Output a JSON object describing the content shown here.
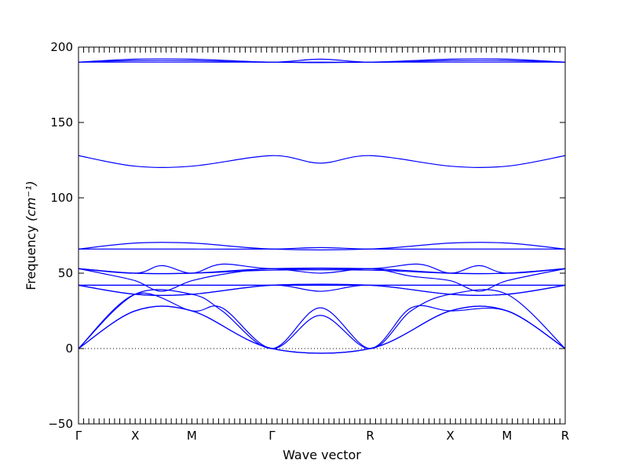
{
  "chart_data": {
    "type": "line",
    "xlabel": "Wave vector",
    "ylabel": "Frequency",
    "ylabel_unit": "(cm⁻¹)",
    "ylim": [
      -50,
      200
    ],
    "yticks": [
      -50,
      0,
      50,
      100,
      150,
      200
    ],
    "xlim": [
      0,
      6.44
    ],
    "high_symmetry_points": [
      {
        "label": "Γ",
        "x": 0
      },
      {
        "label": "X",
        "x": 0.75
      },
      {
        "label": "M",
        "x": 1.5
      },
      {
        "label": "Γ",
        "x": 2.56
      },
      {
        "label": "R",
        "x": 3.86
      },
      {
        "label": "X",
        "x": 4.92
      },
      {
        "label": "M",
        "x": 5.67
      },
      {
        "label": "R",
        "x": 6.44
      }
    ],
    "zero_line": true,
    "grid": false,
    "line_color": "#0000ff",
    "series": [
      {
        "x": [
          0,
          0.75,
          1.5,
          2.56,
          3.86,
          4.92,
          5.67,
          6.44
        ],
        "values": [
          0,
          25,
          25,
          0,
          0,
          25,
          25,
          0
        ]
      },
      {
        "x": [
          0,
          0.75,
          1.5,
          2.56,
          3.86,
          4.92,
          5.67,
          6.44
        ],
        "values": [
          0,
          25,
          25,
          0,
          0,
          25,
          25,
          0
        ]
      },
      {
        "x": [
          0,
          0.75,
          1.5,
          1.9,
          2.56,
          3.2,
          3.86,
          4.4,
          4.92,
          5.67,
          6.44
        ],
        "values": [
          0,
          36,
          25,
          27,
          0,
          22,
          0,
          27,
          25,
          25,
          0
        ]
      },
      {
        "x": [
          0,
          0.75,
          1.5,
          1.9,
          2.56,
          3.2,
          3.86,
          4.4,
          4.92,
          5.67,
          6.44
        ],
        "values": [
          0,
          36,
          36,
          25,
          0,
          27,
          0,
          25,
          36,
          36,
          0
        ]
      },
      {
        "x": [
          0,
          0.75,
          1.5,
          2.56,
          3.2,
          3.86,
          4.92,
          5.67,
          6.44
        ],
        "values": [
          42,
          36,
          36,
          42,
          38,
          42,
          36,
          36,
          42
        ]
      },
      {
        "x": [
          0,
          0.75,
          1.5,
          2.56,
          3.86,
          4.92,
          5.67,
          6.44
        ],
        "values": [
          42,
          36,
          36,
          42,
          42,
          36,
          36,
          42
        ]
      },
      {
        "x": [
          0,
          0.75,
          1.5,
          2.56,
          3.86,
          4.92,
          5.67,
          6.44
        ],
        "values": [
          42,
          42,
          42,
          42,
          42,
          42,
          42,
          42
        ]
      },
      {
        "x": [
          0,
          0.75,
          1.5,
          2.56,
          3.86,
          4.92,
          5.67,
          6.44
        ],
        "values": [
          42,
          42,
          42,
          42,
          42,
          42,
          42,
          42
        ]
      },
      {
        "x": [
          0,
          0.3,
          0.75,
          1.1,
          1.5,
          2.0,
          2.56,
          3.2,
          3.86,
          4.4,
          4.92,
          5.3,
          5.67,
          6.44
        ],
        "values": [
          53,
          50,
          45,
          38,
          45,
          50,
          53,
          50,
          53,
          48,
          45,
          38,
          45,
          53
        ]
      },
      {
        "x": [
          0,
          0.75,
          1.1,
          1.5,
          1.9,
          2.56,
          3.86,
          4.5,
          4.92,
          5.3,
          5.67,
          6.44
        ],
        "values": [
          53,
          50,
          55,
          50,
          56,
          53,
          53,
          56,
          50,
          55,
          50,
          53
        ]
      },
      {
        "x": [
          0,
          0.75,
          1.5,
          2.56,
          3.86,
          4.92,
          5.67,
          6.44
        ],
        "values": [
          53,
          50,
          50,
          52,
          52,
          50,
          50,
          53
        ]
      },
      {
        "x": [
          0,
          0.75,
          1.5,
          2.56,
          3.86,
          4.92,
          5.67,
          6.44
        ],
        "values": [
          53,
          50,
          50,
          53,
          53,
          50,
          50,
          53
        ]
      },
      {
        "x": [
          0,
          0.75,
          1.5,
          2.56,
          3.86,
          4.92,
          5.67,
          6.44
        ],
        "values": [
          66,
          70,
          70,
          66,
          66,
          70,
          70,
          66
        ]
      },
      {
        "x": [
          0,
          0.75,
          1.5,
          2.56,
          3.2,
          3.86,
          4.92,
          5.67,
          6.44
        ],
        "values": [
          66,
          66,
          66,
          66,
          67,
          66,
          66,
          66,
          66
        ]
      },
      {
        "x": [
          0,
          0.75,
          1.5,
          2.56,
          3.2,
          3.86,
          4.92,
          5.67,
          6.44
        ],
        "values": [
          128,
          121,
          121,
          128,
          123,
          128,
          121,
          121,
          128
        ]
      },
      {
        "x": [
          0,
          0.75,
          1.5,
          2.56,
          3.86,
          4.92,
          5.67,
          6.44
        ],
        "values": [
          190,
          192,
          192,
          190,
          190,
          192,
          192,
          190
        ]
      },
      {
        "x": [
          0,
          0.75,
          1.5,
          2.56,
          3.2,
          3.86,
          4.92,
          5.67,
          6.44
        ],
        "values": [
          190,
          191,
          191,
          190,
          192,
          190,
          191,
          191,
          190
        ]
      },
      {
        "x": [
          0,
          0.75,
          1.5,
          2.56,
          3.86,
          4.92,
          5.67,
          6.44
        ],
        "values": [
          190,
          190,
          190,
          190,
          190,
          190,
          190,
          190
        ]
      }
    ]
  }
}
